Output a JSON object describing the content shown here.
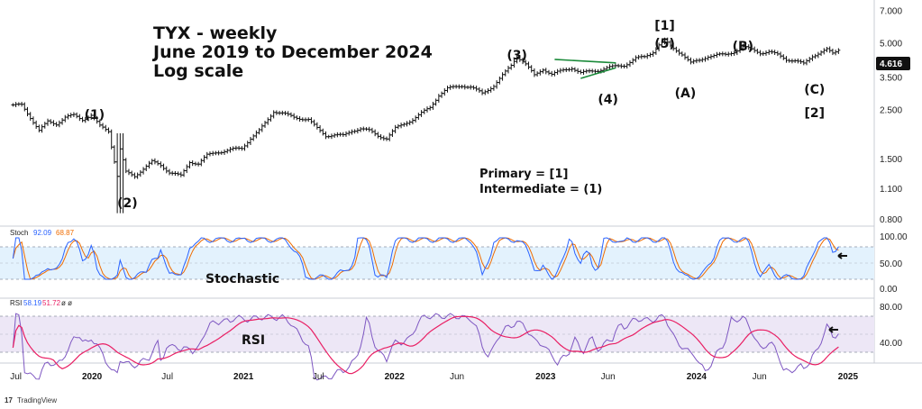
{
  "title": {
    "line1": "TYX - weekly",
    "line2": "June 2019 to December 2024",
    "line3": "Log scale"
  },
  "notes": {
    "primary": "Primary = [1]",
    "intermediate": "Intermediate = (1)"
  },
  "last_price": "4.616",
  "brand": "TradingView",
  "colors": {
    "price_bar": "#111111",
    "badge": "#111111",
    "stoch_k": "#2962ff",
    "stoch_d": "#ef6c00",
    "rsi": "#7e57c2",
    "rsi_ma": "#e91e63",
    "stoch_band": "#e3f2fd",
    "rsi_band": "#ede7f6",
    "trendline": "#1b8a3a"
  },
  "indicators": {
    "stoch": {
      "name": "Stoch",
      "k": "92.09",
      "d": "68.87",
      "label": "Stochastic",
      "ticks": [
        "100.00",
        "50.00",
        "0.00"
      ],
      "upper": 80,
      "lower": 20
    },
    "rsi": {
      "name": "RSI",
      "v1": "58.19",
      "v2": "51.72",
      "v3": "ø ø",
      "label": "RSI",
      "ticks": [
        "80.00",
        "40.00"
      ],
      "upper": 70,
      "lower": 30
    }
  },
  "chart_data": {
    "type": "ohlc",
    "y_scale": "log",
    "ylim": [
      0.75,
      7.5
    ],
    "y_ticks": [
      "7.000",
      "5.000",
      "3.500",
      "2.500",
      "1.500",
      "1.100",
      "0.800"
    ],
    "x_ticks": [
      {
        "label": "Jul",
        "bold": false
      },
      {
        "label": "2020",
        "bold": true
      },
      {
        "label": "Jul",
        "bold": false
      },
      {
        "label": "2021",
        "bold": true
      },
      {
        "label": "Jul",
        "bold": false
      },
      {
        "label": "2022",
        "bold": true
      },
      {
        "label": "Jun",
        "bold": false
      },
      {
        "label": "2023",
        "bold": true
      },
      {
        "label": "Jun",
        "bold": false
      },
      {
        "label": "2024",
        "bold": true
      },
      {
        "label": "Jun",
        "bold": false
      },
      {
        "label": "2025",
        "bold": true
      }
    ],
    "series": [
      {
        "name": "TYX",
        "points": [
          [
            "2019-06-24",
            2.6
          ],
          [
            "2019-07-15",
            2.62
          ],
          [
            "2019-08-05",
            2.3
          ],
          [
            "2019-08-26",
            2.0
          ],
          [
            "2019-09-16",
            2.2
          ],
          [
            "2019-10-07",
            2.15
          ],
          [
            "2019-10-28",
            2.3
          ],
          [
            "2019-11-18",
            2.35
          ],
          [
            "2019-12-09",
            2.25
          ],
          [
            "2019-12-30",
            2.35
          ],
          [
            "2020-01-20",
            2.1
          ],
          [
            "2020-02-10",
            2.0
          ],
          [
            "2020-03-02",
            1.25
          ],
          [
            "2020-03-09",
            1.65
          ],
          [
            "2020-03-23",
            1.3
          ],
          [
            "2020-04-13",
            1.25
          ],
          [
            "2020-05-04",
            1.35
          ],
          [
            "2020-05-25",
            1.45
          ],
          [
            "2020-06-15",
            1.4
          ],
          [
            "2020-07-06",
            1.3
          ],
          [
            "2020-08-03",
            1.25
          ],
          [
            "2020-08-24",
            1.45
          ],
          [
            "2020-09-14",
            1.42
          ],
          [
            "2020-10-05",
            1.55
          ],
          [
            "2020-10-26",
            1.6
          ],
          [
            "2020-11-16",
            1.62
          ],
          [
            "2020-12-07",
            1.65
          ],
          [
            "2020-12-28",
            1.67
          ],
          [
            "2021-01-18",
            1.85
          ],
          [
            "2021-02-08",
            2.0
          ],
          [
            "2021-03-01",
            2.25
          ],
          [
            "2021-03-15",
            2.45
          ],
          [
            "2021-04-05",
            2.4
          ],
          [
            "2021-05-03",
            2.3
          ],
          [
            "2021-06-07",
            2.25
          ],
          [
            "2021-06-28",
            2.05
          ],
          [
            "2021-07-19",
            1.9
          ],
          [
            "2021-08-09",
            1.92
          ],
          [
            "2021-08-30",
            1.9
          ],
          [
            "2021-09-20",
            2.0
          ],
          [
            "2021-10-11",
            2.05
          ],
          [
            "2021-11-01",
            2.0
          ],
          [
            "2021-11-22",
            1.9
          ],
          [
            "2021-12-13",
            1.85
          ],
          [
            "2022-01-03",
            2.05
          ],
          [
            "2022-01-24",
            2.15
          ],
          [
            "2022-02-14",
            2.25
          ],
          [
            "2022-03-07",
            2.4
          ],
          [
            "2022-03-28",
            2.55
          ],
          [
            "2022-04-18",
            2.9
          ],
          [
            "2022-05-09",
            3.1
          ],
          [
            "2022-06-13",
            3.2
          ],
          [
            "2022-07-04",
            3.15
          ],
          [
            "2022-08-01",
            2.95
          ],
          [
            "2022-08-29",
            3.2
          ],
          [
            "2022-09-19",
            3.55
          ],
          [
            "2022-10-10",
            3.95
          ],
          [
            "2022-10-24",
            4.35
          ],
          [
            "2022-11-14",
            4.0
          ],
          [
            "2022-12-05",
            3.55
          ],
          [
            "2022-12-26",
            3.8
          ],
          [
            "2023-01-16",
            3.6
          ],
          [
            "2023-02-13",
            3.75
          ],
          [
            "2023-03-06",
            3.85
          ],
          [
            "2023-03-27",
            3.65
          ],
          [
            "2023-04-17",
            3.7
          ],
          [
            "2023-05-08",
            3.75
          ],
          [
            "2023-05-29",
            3.85
          ],
          [
            "2023-06-19",
            3.9
          ],
          [
            "2023-07-10",
            3.95
          ],
          [
            "2023-08-07",
            4.25
          ],
          [
            "2023-08-28",
            4.3
          ],
          [
            "2023-09-18",
            4.55
          ],
          [
            "2023-10-02",
            4.9
          ],
          [
            "2023-10-16",
            5.1
          ],
          [
            "2023-11-06",
            4.7
          ],
          [
            "2023-11-27",
            4.45
          ],
          [
            "2023-12-18",
            4.05
          ],
          [
            "2024-01-08",
            4.15
          ],
          [
            "2024-01-29",
            4.35
          ],
          [
            "2024-02-19",
            4.4
          ],
          [
            "2024-03-11",
            4.4
          ],
          [
            "2024-04-01",
            4.55
          ],
          [
            "2024-04-22",
            4.8
          ],
          [
            "2024-05-13",
            4.65
          ],
          [
            "2024-06-03",
            4.5
          ],
          [
            "2024-06-24",
            4.55
          ],
          [
            "2024-07-15",
            4.4
          ],
          [
            "2024-08-05",
            4.2
          ],
          [
            "2024-08-26",
            4.15
          ],
          [
            "2024-09-16",
            4.0
          ],
          [
            "2024-10-07",
            4.35
          ],
          [
            "2024-10-28",
            4.55
          ],
          [
            "2024-11-11",
            4.65
          ],
          [
            "2024-11-25",
            4.45
          ],
          [
            "2024-12-09",
            4.62
          ]
        ]
      }
    ],
    "wave_labels": [
      {
        "text": "(1)",
        "date": "2020-01-20"
      },
      {
        "text": "(2)",
        "date": "2020-03-09"
      },
      {
        "text": "(3)",
        "date": "2022-10-24"
      },
      {
        "text": "(4)",
        "date": "2023-06-01"
      },
      {
        "text": "[1]",
        "date": "2023-10-16"
      },
      {
        "text": "(5)",
        "date": "2023-10-16"
      },
      {
        "text": "(A)",
        "date": "2023-12-18"
      },
      {
        "text": "(B)",
        "date": "2024-04-22"
      },
      {
        "text": "(C)",
        "date": "2024-09-16"
      },
      {
        "text": "[2]",
        "date": "2024-09-16"
      }
    ]
  }
}
